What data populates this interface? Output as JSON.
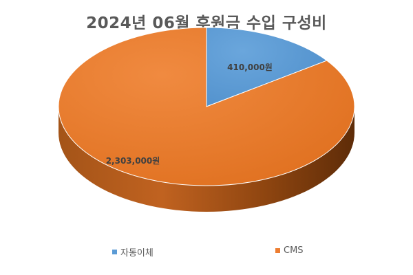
{
  "chart_data": {
    "type": "pie",
    "title": "2024년 06월 후원금 수입 구성비",
    "categories": [
      "자동이체",
      "CMS"
    ],
    "values": [
      410000,
      2303000
    ],
    "data_labels": [
      "410,000원",
      "2,303,000원"
    ],
    "colors": {
      "자동이체": "#5B9BD5",
      "CMS": "#ED7D31"
    },
    "style": "3d",
    "legend_position": "bottom"
  }
}
